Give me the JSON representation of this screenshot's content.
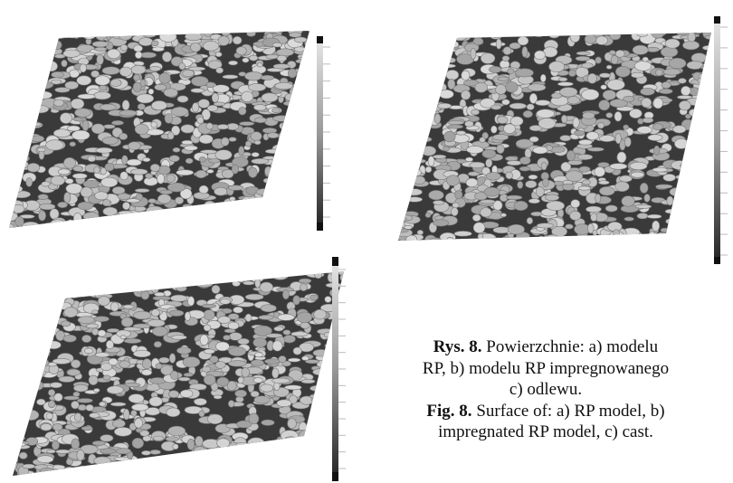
{
  "figure": {
    "caption_pl": {
      "label": "Rys. 8.",
      "lines": [
        "Powierzchnie: a) modelu",
        "RP, b) modelu RP impregnowanego",
        "c) odlewu."
      ]
    },
    "caption_en": {
      "label": "Fig. 8.",
      "lines": [
        "Surface of: a) RP model, b)",
        "impregnated RP model, c) cast."
      ]
    }
  }
}
